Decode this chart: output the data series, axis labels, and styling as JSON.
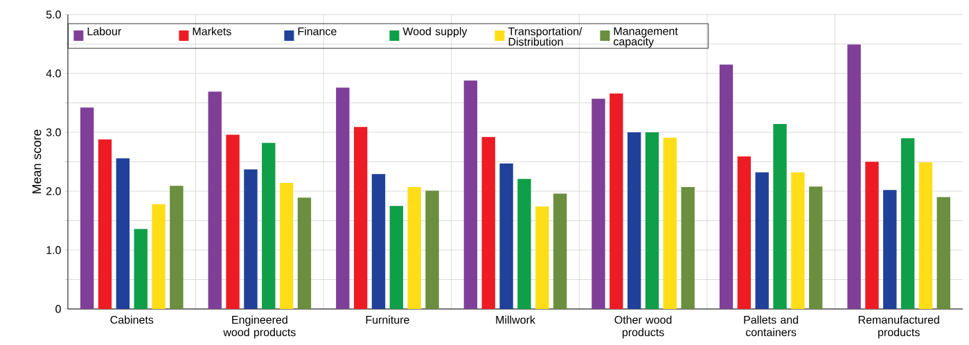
{
  "chart_data": {
    "type": "bar",
    "ylabel": "Mean score",
    "categories": [
      "Cabinets",
      "Engineered wood products",
      "Furniture",
      "Millwork",
      "Other wood products",
      "Pallets and containers",
      "Remanufactured products"
    ],
    "series": [
      {
        "name": "Labour",
        "color": "#7f3f98",
        "values": [
          3.42,
          3.69,
          3.76,
          3.88,
          3.57,
          4.15,
          4.49
        ]
      },
      {
        "name": "Markets",
        "color": "#ed1c24",
        "values": [
          2.88,
          2.96,
          3.09,
          2.92,
          3.66,
          2.59,
          2.5
        ]
      },
      {
        "name": "Finance",
        "color": "#21409a",
        "values": [
          2.56,
          2.37,
          2.29,
          2.47,
          3.0,
          2.32,
          2.02
        ]
      },
      {
        "name": "Wood supply",
        "color": "#0f9f48",
        "values": [
          1.36,
          2.82,
          1.75,
          2.21,
          3.0,
          3.14,
          2.9
        ]
      },
      {
        "name": "Transportation/ Distribution",
        "color": "#ffde17",
        "values": [
          1.78,
          2.14,
          2.07,
          1.74,
          2.91,
          2.32,
          2.49
        ]
      },
      {
        "name": "Management capacity",
        "color": "#6b8e3f",
        "values": [
          2.09,
          1.89,
          2.01,
          1.96,
          2.07,
          2.08,
          1.9
        ]
      }
    ],
    "ylim": [
      0,
      5
    ],
    "yticks": [
      {
        "value": 0,
        "label": "0"
      },
      {
        "value": 0.5,
        "label": null
      },
      {
        "value": 1,
        "label": "1.0"
      },
      {
        "value": 1.5,
        "label": null
      },
      {
        "value": 2,
        "label": "2.0"
      },
      {
        "value": 2.5,
        "label": null
      },
      {
        "value": 3,
        "label": "3.0"
      },
      {
        "value": 3.5,
        "label": null
      },
      {
        "value": 4,
        "label": "4.0"
      },
      {
        "value": 4.5,
        "label": null
      },
      {
        "value": 5,
        "label": "5.0"
      }
    ],
    "grid": true,
    "legend": "top"
  }
}
